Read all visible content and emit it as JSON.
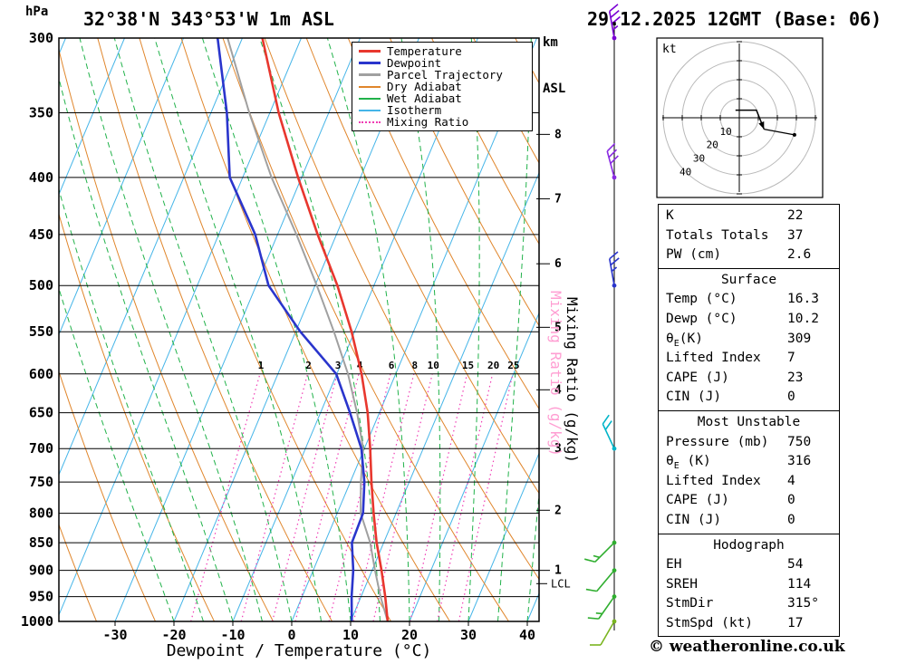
{
  "header": {
    "station_title": "32°38'N 343°53'W 1m ASL",
    "datetime_title": "29.12.2025 12GMT (Base: 06)"
  },
  "axes": {
    "pressure_unit": "hPa",
    "altitude_unit_lines": [
      "km",
      "ASL"
    ],
    "x_label": "Dewpoint / Temperature (°C)",
    "mixing_ratio_label": "Mixing Ratio (g/kg)",
    "lcl_label": "LCL",
    "pressure_ticks": [
      300,
      350,
      400,
      450,
      500,
      550,
      600,
      650,
      700,
      750,
      800,
      850,
      900,
      950,
      1000
    ],
    "temp_ticks": [
      -30,
      -20,
      -10,
      0,
      10,
      20,
      30,
      40
    ],
    "km_ticks": [
      1,
      2,
      3,
      4,
      5,
      6,
      7,
      8
    ]
  },
  "legend": [
    {
      "label": "Temperature",
      "color": "#e8372e",
      "thickness": 3,
      "style": "solid"
    },
    {
      "label": "Dewpoint",
      "color": "#2a35cc",
      "thickness": 3,
      "style": "solid"
    },
    {
      "label": "Parcel Trajectory",
      "color": "#a0a0a0",
      "thickness": 3,
      "style": "solid"
    },
    {
      "label": "Dry Adiabat",
      "color": "#e0862c",
      "thickness": 2,
      "style": "solid"
    },
    {
      "label": "Wet Adiabat",
      "color": "#21b24a",
      "thickness": 2,
      "style": "solid"
    },
    {
      "label": "Isotherm",
      "color": "#45b5e8",
      "thickness": 2,
      "style": "solid"
    },
    {
      "label": "Mixing Ratio",
      "color": "#f03cb4",
      "thickness": 2,
      "style": "dotted"
    }
  ],
  "chart_data": {
    "type": "skewt_log_p",
    "pressure_range": [
      300,
      1000
    ],
    "surface_temp_range": [
      -40,
      42
    ],
    "isotherm_step_c": 10,
    "dry_adiabat_step_k": 10,
    "wet_adiabat_step_c": 5,
    "mixing_ratio_lines_g_kg": [
      1,
      2,
      3,
      4,
      6,
      8,
      10,
      15,
      20,
      25
    ],
    "km_tick_pressures_hpa": [
      900,
      795,
      700,
      620,
      545,
      478,
      418,
      366
    ],
    "lcl_pressure_hpa": 925,
    "sounding": {
      "pressure_hpa": [
        1000,
        950,
        900,
        850,
        800,
        750,
        700,
        650,
        600,
        550,
        500,
        450,
        400,
        350,
        300
      ],
      "temperature_c": [
        16.3,
        14.1,
        11.6,
        8.8,
        6.2,
        3.6,
        1.0,
        -2.0,
        -5.8,
        -10.5,
        -16.2,
        -23.2,
        -30.6,
        -38.5,
        -46.6
      ],
      "dewpoint_c": [
        10.2,
        8.4,
        6.8,
        4.6,
        4.4,
        2.4,
        -0.5,
        -5.0,
        -10.1,
        -19.2,
        -27.9,
        -33.8,
        -42.2,
        -47.3,
        -54.2
      ],
      "parcel_c": [
        16.3,
        13.3,
        10.5,
        7.7,
        4.0,
        1.8,
        -0.2,
        -3.8,
        -8.1,
        -13.5,
        -19.7,
        -26.8,
        -35.1,
        -43.5,
        -52.5
      ]
    }
  },
  "wind_barbs": [
    {
      "pressure_hpa": 300,
      "color": "#7a00d4",
      "full": 3,
      "half": 1,
      "angle_deg": 100
    },
    {
      "pressure_hpa": 400,
      "color": "#8a2be2",
      "full": 3,
      "half": 0,
      "angle_deg": 105
    },
    {
      "pressure_hpa": 500,
      "color": "#2a35cc",
      "full": 2,
      "half": 1,
      "angle_deg": 100
    },
    {
      "pressure_hpa": 700,
      "color": "#00b4c8",
      "full": 2,
      "half": 0,
      "angle_deg": 115
    },
    {
      "pressure_hpa": 850,
      "color": "#2fae2f",
      "full": 1,
      "half": 1,
      "angle_deg": 225
    },
    {
      "pressure_hpa": 900,
      "color": "#2fae2f",
      "full": 1,
      "half": 0,
      "angle_deg": 230
    },
    {
      "pressure_hpa": 950,
      "color": "#2fae2f",
      "full": 1,
      "half": 1,
      "angle_deg": 235
    },
    {
      "pressure_hpa": 1000,
      "color": "#7ab520",
      "full": 1,
      "half": 0,
      "angle_deg": 240
    }
  ],
  "hodograph": {
    "unit": "kt",
    "rings_kt": [
      10,
      20,
      30,
      40
    ],
    "trace_kt": [
      {
        "u": -2,
        "v": 4
      },
      {
        "u": 9,
        "v": 4
      },
      {
        "u": 13,
        "v": -6
      }
    ],
    "tail_kt": [
      {
        "u": 13,
        "v": -6
      },
      {
        "u": 29,
        "v": -9
      }
    ]
  },
  "stats": {
    "indices": {
      "rows": [
        {
          "label": "K",
          "value": "22"
        },
        {
          "label": "Totals Totals",
          "value": "37"
        },
        {
          "label": "PW (cm)",
          "value": "2.6"
        }
      ]
    },
    "surface": {
      "title": "Surface",
      "rows": [
        {
          "label": "Temp (°C)",
          "value": "16.3"
        },
        {
          "label": "Dewp (°C)",
          "value": "10.2"
        },
        {
          "label_pre": "θ",
          "label_sub": "E",
          "label_post": "(K)",
          "value": "309"
        },
        {
          "label": "Lifted Index",
          "value": "7"
        },
        {
          "label": "CAPE (J)",
          "value": "23"
        },
        {
          "label": "CIN (J)",
          "value": "0"
        }
      ]
    },
    "most_unstable": {
      "title": "Most Unstable",
      "rows": [
        {
          "label": "Pressure (mb)",
          "value": "750"
        },
        {
          "label_pre": "θ",
          "label_sub": "E",
          "label_post": " (K)",
          "value": "316"
        },
        {
          "label": "Lifted Index",
          "value": "4"
        },
        {
          "label": "CAPE (J)",
          "value": "0"
        },
        {
          "label": "CIN (J)",
          "value": "0"
        }
      ]
    },
    "hodograph_stats": {
      "title": "Hodograph",
      "rows": [
        {
          "label": "EH",
          "value": "54"
        },
        {
          "label": "SREH",
          "value": "114"
        },
        {
          "label": "StmDir",
          "value": "315°"
        },
        {
          "label": "StmSpd (kt)",
          "value": "17"
        }
      ]
    }
  },
  "footer": {
    "copyright": "© weatheronline.co.uk"
  },
  "colors": {
    "isotherm": "#45b5e8",
    "dry_adiabat": "#e0862c",
    "wet_adiabat": "#21b24a",
    "mixing_ratio": "#f03cb4",
    "mixing_label": "#e838b8",
    "temperature": "#e8372e",
    "dewpoint": "#2a35cc",
    "parcel": "#a0a0a0",
    "axis": "#000000",
    "hodo_ring": "#b9b9b9",
    "hodo_ring_label": "#999999"
  }
}
